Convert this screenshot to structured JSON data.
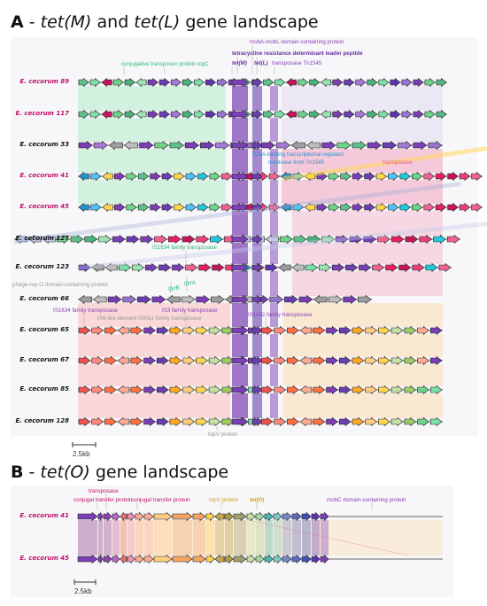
{
  "panel_a": {
    "title_prefix": "A",
    "title_dash": " - ",
    "gene1": "tet(M)",
    "title_and": " and ",
    "gene2": "tet(L)",
    "title_suffix": " gene landscape",
    "strains": [
      {
        "name": "E. cecorum 89",
        "color": "#c0106a"
      },
      {
        "name": "E. cecorum 117",
        "color": "#c0106a"
      },
      {
        "name": "E. cecorum 33",
        "color": "#111111"
      },
      {
        "name": "E. cecorum 41",
        "color": "#c0106a"
      },
      {
        "name": "E. cecorum 45",
        "color": "#c0106a"
      },
      {
        "name": "E. cecorum 127",
        "color": "#111111"
      },
      {
        "name": "E. cecorum 123",
        "color": "#111111"
      },
      {
        "name": "E. cecorum 66",
        "color": "#111111"
      },
      {
        "name": "E. cecorum 65",
        "color": "#111111"
      },
      {
        "name": "E. cecorum 67",
        "color": "#111111"
      },
      {
        "name": "E. cecorum 85",
        "color": "#111111"
      },
      {
        "name": "E. cecorum 128",
        "color": "#111111"
      }
    ],
    "annotations": {
      "mobA": "mobA-mobL domain-containing protein",
      "leader": "tetracycline resistance determinant leader peptide",
      "conj_tcpC": "conjugative transposon protein tcpC",
      "tetM": "tet(M)",
      "tetL": "tet(L)",
      "tn1545": "transposase Tn1545",
      "dna_binding": "DNA-binding transcriptional regulator",
      "resolvase": "resolvase from Tn1545",
      "transposase_small": "transposase",
      "is1634_a": "IS1634 family transposase",
      "gyrB": "gyrB",
      "gyrA": "gyrA",
      "phage_rep": "phage-rep-O domain-containing protein",
      "is1634_b": "IS1634 family transposase",
      "is3": "IS3 family transposase",
      "is6": "IS6-like element IS6fa1 family transposase",
      "is1182": "IS1182 family transposase",
      "tnpV": "tnpV protein"
    },
    "scale": "2.5kb"
  },
  "panel_b": {
    "title_prefix": "B",
    "title_dash": " - ",
    "gene": "tet(O)",
    "title_suffix": " gene landscape",
    "strains": [
      {
        "name": "E. cecorum 41",
        "color": "#c0106a"
      },
      {
        "name": "E. cecorum 45",
        "color": "#c0106a"
      }
    ],
    "annotations": {
      "transposase": "transposase",
      "conj_transfer1": "conjugal transfer protein",
      "conj_transfer2": "conjugal transfer protein",
      "tnpV": "tnpV protein",
      "tetO": "tet(O)",
      "mobC": "mobC domain-containing protein"
    },
    "scale": "2.5kb"
  },
  "colors": {
    "tet": "#7b3fb5",
    "magenta": "#c0106a",
    "green_label": "#2bb673",
    "blue_label": "#2a8fd0",
    "purple_label": "#8a3fb8",
    "pink_label": "#e25aa0",
    "orange_label": "#d4a017",
    "grey_label": "#999999"
  }
}
